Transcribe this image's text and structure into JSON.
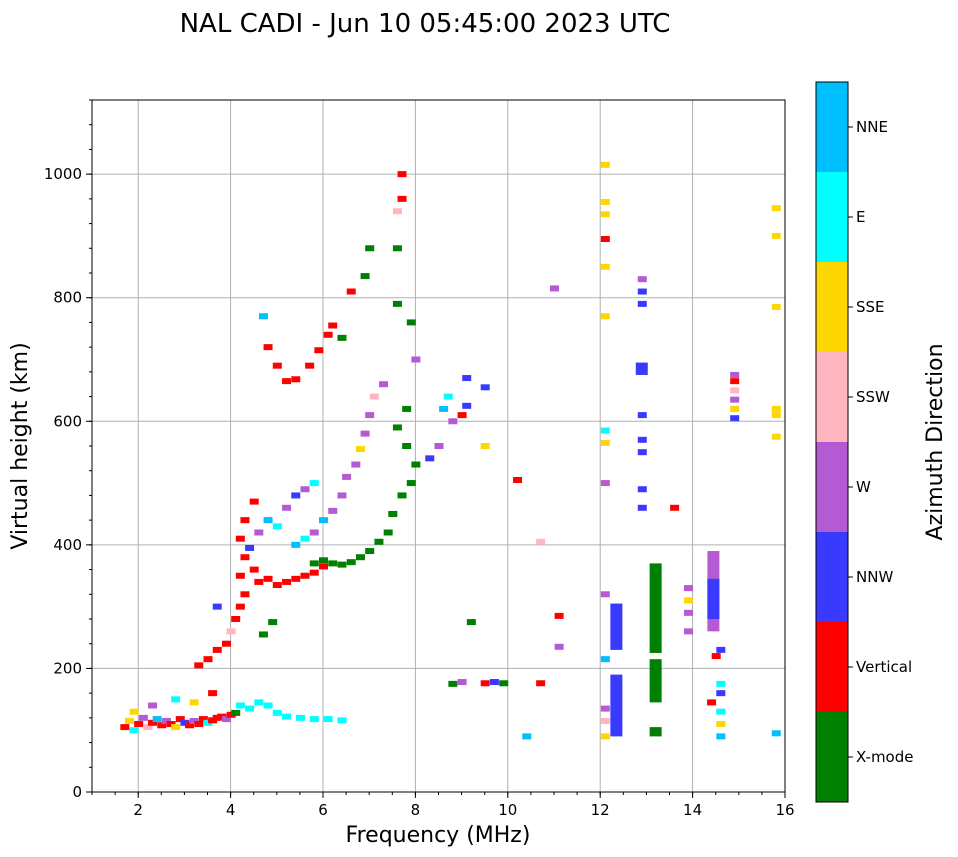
{
  "chart_data": {
    "type": "scatter",
    "title": "NAL CADI - Jun 10 05:45:00 2023 UTC",
    "xlabel": "Frequency (MHz)",
    "ylabel": "Virtual height (km)",
    "xlim": [
      1,
      16
    ],
    "ylim": [
      0,
      1120
    ],
    "xticks": [
      2,
      4,
      6,
      8,
      10,
      12,
      14,
      16
    ],
    "yticks": [
      0,
      200,
      400,
      600,
      800,
      1000
    ],
    "grid": true,
    "colorbar": {
      "label": "Azimuth Direction",
      "categories": [
        {
          "name": "X-mode",
          "color": "#008000"
        },
        {
          "name": "Vertical",
          "color": "#ff0000"
        },
        {
          "name": "NNW",
          "color": "#3a3aff"
        },
        {
          "name": "W",
          "color": "#b45ad2"
        },
        {
          "name": "SSW",
          "color": "#ffb6c1"
        },
        {
          "name": "SSE",
          "color": "#ffd700"
        },
        {
          "name": "E",
          "color": "#00ffff"
        },
        {
          "name": "NNE",
          "color": "#00bfff"
        }
      ]
    },
    "points": [
      [
        1.7,
        105,
        "Vertical"
      ],
      [
        1.8,
        115,
        "SSE"
      ],
      [
        1.9,
        100,
        "E"
      ],
      [
        2.0,
        110,
        "Vertical"
      ],
      [
        2.1,
        120,
        "W"
      ],
      [
        2.2,
        105,
        "SSW"
      ],
      [
        2.3,
        112,
        "Vertical"
      ],
      [
        2.4,
        118,
        "NNE"
      ],
      [
        2.5,
        108,
        "Vertical"
      ],
      [
        2.6,
        115,
        "W"
      ],
      [
        2.7,
        110,
        "Vertical"
      ],
      [
        2.8,
        105,
        "SSE"
      ],
      [
        2.9,
        118,
        "Vertical"
      ],
      [
        3.0,
        112,
        "NNW"
      ],
      [
        3.1,
        108,
        "Vertical"
      ],
      [
        3.2,
        115,
        "W"
      ],
      [
        3.3,
        110,
        "Vertical"
      ],
      [
        3.4,
        118,
        "Vertical"
      ],
      [
        3.5,
        112,
        "E"
      ],
      [
        3.6,
        116,
        "Vertical"
      ],
      [
        3.7,
        120,
        "Vertical"
      ],
      [
        3.8,
        122,
        "Vertical"
      ],
      [
        3.9,
        118,
        "W"
      ],
      [
        4.0,
        125,
        "Vertical"
      ],
      [
        4.1,
        128,
        "X-mode"
      ],
      [
        4.2,
        140,
        "E"
      ],
      [
        4.4,
        135,
        "E"
      ],
      [
        4.6,
        145,
        "E"
      ],
      [
        4.8,
        140,
        "E"
      ],
      [
        5.0,
        128,
        "E"
      ],
      [
        5.2,
        122,
        "E"
      ],
      [
        5.5,
        120,
        "E"
      ],
      [
        5.8,
        118,
        "E"
      ],
      [
        6.1,
        118,
        "E"
      ],
      [
        6.4,
        116,
        "E"
      ],
      [
        1.9,
        130,
        "SSE"
      ],
      [
        2.3,
        140,
        "W"
      ],
      [
        2.8,
        150,
        "E"
      ],
      [
        3.2,
        145,
        "SSE"
      ],
      [
        3.6,
        160,
        "Vertical"
      ],
      [
        3.3,
        205,
        "Vertical"
      ],
      [
        3.5,
        215,
        "Vertical"
      ],
      [
        3.7,
        230,
        "Vertical"
      ],
      [
        3.9,
        240,
        "Vertical"
      ],
      [
        4.0,
        260,
        "SSW"
      ],
      [
        4.1,
        280,
        "Vertical"
      ],
      [
        4.2,
        300,
        "Vertical"
      ],
      [
        4.3,
        320,
        "Vertical"
      ],
      [
        4.2,
        350,
        "Vertical"
      ],
      [
        4.3,
        380,
        "Vertical"
      ],
      [
        4.2,
        410,
        "Vertical"
      ],
      [
        4.3,
        440,
        "Vertical"
      ],
      [
        4.5,
        470,
        "Vertical"
      ],
      [
        4.5,
        360,
        "Vertical"
      ],
      [
        4.6,
        340,
        "Vertical"
      ],
      [
        4.8,
        345,
        "Vertical"
      ],
      [
        5.0,
        335,
        "Vertical"
      ],
      [
        5.2,
        340,
        "Vertical"
      ],
      [
        5.4,
        345,
        "Vertical"
      ],
      [
        5.6,
        350,
        "Vertical"
      ],
      [
        5.8,
        355,
        "Vertical"
      ],
      [
        6.0,
        365,
        "Vertical"
      ],
      [
        4.4,
        395,
        "NNW"
      ],
      [
        4.6,
        420,
        "W"
      ],
      [
        4.8,
        440,
        "NNE"
      ],
      [
        5.0,
        430,
        "E"
      ],
      [
        5.2,
        460,
        "W"
      ],
      [
        5.4,
        480,
        "NNW"
      ],
      [
        5.6,
        490,
        "W"
      ],
      [
        5.8,
        500,
        "E"
      ],
      [
        3.7,
        300,
        "NNW"
      ],
      [
        4.9,
        275,
        "X-mode"
      ],
      [
        4.7,
        255,
        "X-mode"
      ],
      [
        5.8,
        370,
        "X-mode"
      ],
      [
        6.0,
        375,
        "X-mode"
      ],
      [
        6.2,
        370,
        "X-mode"
      ],
      [
        6.4,
        368,
        "X-mode"
      ],
      [
        6.6,
        372,
        "X-mode"
      ],
      [
        6.8,
        380,
        "X-mode"
      ],
      [
        7.0,
        390,
        "X-mode"
      ],
      [
        7.2,
        405,
        "X-mode"
      ],
      [
        7.4,
        420,
        "X-mode"
      ],
      [
        7.5,
        450,
        "X-mode"
      ],
      [
        7.7,
        480,
        "X-mode"
      ],
      [
        7.9,
        500,
        "X-mode"
      ],
      [
        8.0,
        530,
        "X-mode"
      ],
      [
        7.8,
        560,
        "X-mode"
      ],
      [
        7.6,
        590,
        "X-mode"
      ],
      [
        7.8,
        620,
        "X-mode"
      ],
      [
        5.4,
        400,
        "NNE"
      ],
      [
        5.6,
        410,
        "E"
      ],
      [
        5.8,
        420,
        "W"
      ],
      [
        6.0,
        440,
        "NNE"
      ],
      [
        6.2,
        455,
        "W"
      ],
      [
        6.4,
        480,
        "W"
      ],
      [
        6.5,
        510,
        "W"
      ],
      [
        6.7,
        530,
        "W"
      ],
      [
        6.8,
        555,
        "SSE"
      ],
      [
        6.9,
        580,
        "W"
      ],
      [
        7.0,
        610,
        "W"
      ],
      [
        7.1,
        640,
        "SSW"
      ],
      [
        7.3,
        660,
        "W"
      ],
      [
        4.8,
        720,
        "Vertical"
      ],
      [
        5.0,
        690,
        "Vertical"
      ],
      [
        5.2,
        665,
        "Vertical"
      ],
      [
        5.4,
        668,
        "Vertical"
      ],
      [
        5.7,
        690,
        "Vertical"
      ],
      [
        5.9,
        715,
        "Vertical"
      ],
      [
        6.1,
        740,
        "Vertical"
      ],
      [
        6.4,
        735,
        "X-mode"
      ],
      [
        6.2,
        755,
        "Vertical"
      ],
      [
        4.7,
        770,
        "NNE"
      ],
      [
        6.6,
        810,
        "Vertical"
      ],
      [
        7.0,
        880,
        "X-mode"
      ],
      [
        7.6,
        880,
        "X-mode"
      ],
      [
        7.7,
        960,
        "Vertical"
      ],
      [
        7.7,
        1000,
        "Vertical"
      ],
      [
        7.6,
        940,
        "SSW"
      ],
      [
        6.9,
        835,
        "X-mode"
      ],
      [
        7.6,
        790,
        "X-mode"
      ],
      [
        8.0,
        700,
        "W"
      ],
      [
        7.9,
        760,
        "X-mode"
      ],
      [
        8.6,
        620,
        "NNE"
      ],
      [
        8.7,
        640,
        "E"
      ],
      [
        8.8,
        600,
        "W"
      ],
      [
        9.0,
        610,
        "Vertical"
      ],
      [
        9.1,
        625,
        "NNW"
      ],
      [
        9.1,
        670,
        "NNW"
      ],
      [
        8.5,
        560,
        "W"
      ],
      [
        8.3,
        540,
        "NNW"
      ],
      [
        9.5,
        655,
        "NNW"
      ],
      [
        9.5,
        560,
        "SSE"
      ],
      [
        9.2,
        275,
        "X-mode"
      ],
      [
        8.8,
        175,
        "X-mode"
      ],
      [
        9.0,
        178,
        "W"
      ],
      [
        9.5,
        176,
        "Vertical"
      ],
      [
        9.7,
        178,
        "NNW"
      ],
      [
        9.9,
        176,
        "X-mode"
      ],
      [
        10.7,
        176,
        "Vertical"
      ],
      [
        10.2,
        505,
        "Vertical"
      ],
      [
        10.7,
        405,
        "SSW"
      ],
      [
        10.4,
        90,
        "NNE"
      ],
      [
        11.1,
        285,
        "Vertical"
      ],
      [
        11.1,
        235,
        "W"
      ],
      [
        11.0,
        815,
        "W"
      ],
      [
        12.1,
        90,
        "SSE"
      ],
      [
        12.1,
        115,
        "SSW"
      ],
      [
        12.1,
        135,
        "W"
      ],
      [
        12.1,
        215,
        "NNE"
      ],
      [
        12.1,
        320,
        "W"
      ],
      [
        12.1,
        500,
        "W"
      ],
      [
        12.1,
        565,
        "SSE"
      ],
      [
        12.1,
        585,
        "E"
      ],
      [
        12.1,
        770,
        "SSE"
      ],
      [
        12.1,
        850,
        "SSE"
      ],
      [
        12.1,
        895,
        "Vertical"
      ],
      [
        12.1,
        935,
        "SSE"
      ],
      [
        12.1,
        955,
        "SSE"
      ],
      [
        12.1,
        1015,
        "SSE"
      ],
      [
        12.9,
        460,
        "NNW"
      ],
      [
        12.9,
        490,
        "NNW"
      ],
      [
        12.9,
        550,
        "NNW"
      ],
      [
        12.9,
        570,
        "NNW"
      ],
      [
        12.9,
        610,
        "NNW"
      ],
      [
        12.9,
        680,
        "NNW"
      ],
      [
        12.9,
        790,
        "NNW"
      ],
      [
        12.9,
        810,
        "NNW"
      ],
      [
        12.9,
        830,
        "W"
      ],
      [
        13.9,
        260,
        "W"
      ],
      [
        13.9,
        290,
        "W"
      ],
      [
        13.9,
        310,
        "SSE"
      ],
      [
        13.9,
        330,
        "W"
      ],
      [
        13.6,
        460,
        "Vertical"
      ],
      [
        14.5,
        220,
        "Vertical"
      ],
      [
        14.4,
        145,
        "Vertical"
      ],
      [
        14.6,
        90,
        "NNE"
      ],
      [
        14.6,
        110,
        "SSE"
      ],
      [
        14.6,
        130,
        "E"
      ],
      [
        14.6,
        160,
        "NNW"
      ],
      [
        14.6,
        175,
        "E"
      ],
      [
        14.6,
        230,
        "NNW"
      ],
      [
        14.9,
        605,
        "NNW"
      ],
      [
        14.9,
        620,
        "SSE"
      ],
      [
        14.9,
        635,
        "W"
      ],
      [
        14.9,
        650,
        "SSW"
      ],
      [
        14.9,
        665,
        "Vertical"
      ],
      [
        14.9,
        675,
        "W"
      ],
      [
        15.8,
        95,
        "NNE"
      ],
      [
        15.8,
        575,
        "SSE"
      ],
      [
        15.8,
        610,
        "SSE"
      ],
      [
        15.8,
        620,
        "SSE"
      ],
      [
        15.8,
        785,
        "SSE"
      ],
      [
        15.8,
        900,
        "SSE"
      ],
      [
        15.8,
        945,
        "SSE"
      ]
    ],
    "bands": [
      [
        12.35,
        90,
        190,
        "NNW"
      ],
      [
        12.35,
        230,
        305,
        "NNW"
      ],
      [
        13.2,
        90,
        105,
        "X-mode"
      ],
      [
        13.2,
        145,
        215,
        "X-mode"
      ],
      [
        13.2,
        225,
        370,
        "X-mode"
      ],
      [
        14.45,
        260,
        390,
        "W"
      ],
      [
        14.45,
        280,
        345,
        "NNW"
      ],
      [
        12.9,
        675,
        695,
        "NNW"
      ]
    ]
  }
}
